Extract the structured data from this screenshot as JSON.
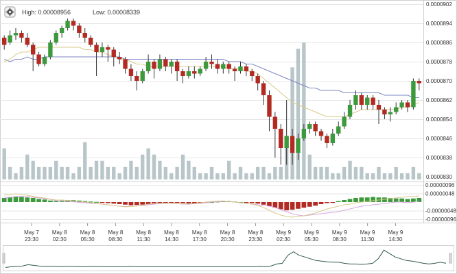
{
  "header": {
    "high_label": "High: 0.00008956",
    "low_label": "Low: 0.00008339",
    "settings_icon": "gear-icon"
  },
  "colors": {
    "up": "#3c9a3c",
    "down": "#b32a22",
    "volume": "#b9c6c9",
    "ma_slow": "#7c87c4",
    "ma_fast": "#d9c98a",
    "macd_signal": "#d8a6e0",
    "macd_line": "#d9c98a",
    "grid": "#e6e6e6"
  },
  "chart_data": [
    {
      "type": "candlestick",
      "price_axis": {
        "ticks": [
          "0.0000902",
          "0.0000894",
          "0.0000886",
          "0.0000878",
          "0.0000870",
          "0.0000862",
          "0.0000854",
          "0.0000846",
          "0.0000838",
          "0.0000830"
        ],
        "range": [
          8.3e-05,
          9.02e-05
        ]
      },
      "time_axis": [
        {
          "date": "May 7",
          "time": "23:30"
        },
        {
          "date": "May 8",
          "time": "02:30"
        },
        {
          "date": "May 8",
          "time": "05:30"
        },
        {
          "date": "May 8",
          "time": "08:30"
        },
        {
          "date": "May 8",
          "time": "11:30"
        },
        {
          "date": "May 8",
          "time": "14:30"
        },
        {
          "date": "May 8",
          "time": "17:30"
        },
        {
          "date": "May 8",
          "time": "20:30"
        },
        {
          "date": "May 8",
          "time": "23:30"
        },
        {
          "date": "May 9",
          "time": "02:30"
        },
        {
          "date": "May 9",
          "time": "05:30"
        },
        {
          "date": "May 9",
          "time": "08:30"
        },
        {
          "date": "May 9",
          "time": "11:30"
        },
        {
          "date": "May 9",
          "time": "14:30"
        }
      ],
      "candles": [
        [
          8.88e-05,
          8.85e-05,
          8.89e-05,
          8.83e-05
        ],
        [
          8.86e-05,
          8.89e-05,
          8.91e-05,
          8.85e-05
        ],
        [
          8.89e-05,
          8.9e-05,
          8.92e-05,
          8.87e-05
        ],
        [
          8.9e-05,
          8.88e-05,
          8.91e-05,
          8.86e-05
        ],
        [
          8.88e-05,
          8.85e-05,
          8.9e-05,
          8.84e-05
        ],
        [
          8.85e-05,
          8.81e-05,
          8.86e-05,
          8.74e-05
        ],
        [
          8.81e-05,
          8.77e-05,
          8.82e-05,
          8.76e-05
        ],
        [
          8.77e-05,
          8.8e-05,
          8.81e-05,
          8.76e-05
        ],
        [
          8.8e-05,
          8.86e-05,
          8.87e-05,
          8.79e-05
        ],
        [
          8.86e-05,
          8.9e-05,
          8.91e-05,
          8.85e-05
        ],
        [
          8.9e-05,
          8.92e-05,
          8.93e-05,
          8.88e-05
        ],
        [
          8.92e-05,
          8.95e-05,
          8.96e-05,
          8.91e-05
        ],
        [
          8.95e-05,
          8.93e-05,
          8.96e-05,
          8.91e-05
        ],
        [
          8.93e-05,
          8.9e-05,
          8.94e-05,
          8.88e-05
        ],
        [
          8.9e-05,
          8.88e-05,
          8.92e-05,
          8.86e-05
        ],
        [
          8.88e-05,
          8.85e-05,
          8.89e-05,
          8.84e-05
        ],
        [
          8.85e-05,
          8.82e-05,
          8.86e-05,
          8.72e-05
        ],
        [
          8.82e-05,
          8.84e-05,
          8.86e-05,
          8.8e-05
        ],
        [
          8.84e-05,
          8.83e-05,
          8.85e-05,
          8.78e-05
        ],
        [
          8.83e-05,
          8.8e-05,
          8.84e-05,
          8.76e-05
        ],
        [
          8.8e-05,
          8.79e-05,
          8.82e-05,
          8.77e-05
        ],
        [
          8.79e-05,
          8.75e-05,
          8.8e-05,
          8.73e-05
        ],
        [
          8.75e-05,
          8.72e-05,
          8.77e-05,
          8.7e-05
        ],
        [
          8.72e-05,
          8.7e-05,
          8.74e-05,
          8.66e-05
        ],
        [
          8.7e-05,
          8.74e-05,
          8.75e-05,
          8.69e-05
        ],
        [
          8.74e-05,
          8.78e-05,
          8.81e-05,
          8.73e-05
        ],
        [
          8.78e-05,
          8.75e-05,
          8.79e-05,
          8.71e-05
        ],
        [
          8.75e-05,
          8.79e-05,
          8.81e-05,
          8.74e-05
        ],
        [
          8.79e-05,
          8.76e-05,
          8.8e-05,
          8.74e-05
        ],
        [
          8.76e-05,
          8.78e-05,
          8.79e-05,
          8.73e-05
        ],
        [
          8.78e-05,
          8.74e-05,
          8.79e-05,
          8.7e-05
        ],
        [
          8.74e-05,
          8.72e-05,
          8.75e-05,
          8.69e-05
        ],
        [
          8.72e-05,
          8.74e-05,
          8.76e-05,
          8.71e-05
        ],
        [
          8.74e-05,
          8.73e-05,
          8.76e-05,
          8.71e-05
        ],
        [
          8.73e-05,
          8.75e-05,
          8.76e-05,
          8.72e-05
        ],
        [
          8.75e-05,
          8.78e-05,
          8.8e-05,
          8.74e-05
        ],
        [
          8.78e-05,
          8.77e-05,
          8.81e-05,
          8.75e-05
        ],
        [
          8.77e-05,
          8.75e-05,
          8.79e-05,
          8.73e-05
        ],
        [
          8.75e-05,
          8.77e-05,
          8.78e-05,
          8.73e-05
        ],
        [
          8.77e-05,
          8.75e-05,
          8.78e-05,
          8.73e-05
        ],
        [
          8.75e-05,
          8.74e-05,
          8.76e-05,
          8.7e-05
        ],
        [
          8.74e-05,
          8.76e-05,
          8.78e-05,
          8.73e-05
        ],
        [
          8.76e-05,
          8.74e-05,
          8.77e-05,
          8.72e-05
        ],
        [
          8.74e-05,
          8.72e-05,
          8.75e-05,
          8.7e-05
        ],
        [
          8.72e-05,
          8.69e-05,
          8.73e-05,
          8.66e-05
        ],
        [
          8.69e-05,
          8.64e-05,
          8.7e-05,
          8.6e-05
        ],
        [
          8.64e-05,
          8.55e-05,
          8.66e-05,
          8.49e-05
        ],
        [
          8.55e-05,
          8.5e-05,
          8.57e-05,
          8.38e-05
        ],
        [
          8.5e-05,
          8.42e-05,
          8.52e-05,
          8.35e-05
        ],
        [
          8.42e-05,
          8.47e-05,
          8.62e-05,
          8.35e-05
        ],
        [
          8.47e-05,
          8.4e-05,
          8.5e-05,
          8.35e-05
        ],
        [
          8.4e-05,
          8.46e-05,
          8.48e-05,
          8.37e-05
        ],
        [
          8.46e-05,
          8.5e-05,
          8.52e-05,
          8.45e-05
        ],
        [
          8.5e-05,
          8.52e-05,
          8.53e-05,
          8.48e-05
        ],
        [
          8.52e-05,
          8.49e-05,
          8.53e-05,
          8.47e-05
        ],
        [
          8.49e-05,
          8.47e-05,
          8.5e-05,
          8.45e-05
        ],
        [
          8.47e-05,
          8.44e-05,
          8.48e-05,
          8.42e-05
        ],
        [
          8.44e-05,
          8.48e-05,
          8.5e-05,
          8.43e-05
        ],
        [
          8.48e-05,
          8.51e-05,
          8.53e-05,
          8.47e-05
        ],
        [
          8.51e-05,
          8.55e-05,
          8.57e-05,
          8.5e-05
        ],
        [
          8.55e-05,
          8.6e-05,
          8.62e-05,
          8.54e-05
        ],
        [
          8.6e-05,
          8.64e-05,
          8.66e-05,
          8.58e-05
        ],
        [
          8.64e-05,
          8.6e-05,
          8.65e-05,
          8.58e-05
        ],
        [
          8.6e-05,
          8.63e-05,
          8.64e-05,
          8.58e-05
        ],
        [
          8.63e-05,
          8.6e-05,
          8.64e-05,
          8.58e-05
        ],
        [
          8.6e-05,
          8.58e-05,
          8.62e-05,
          8.52e-05
        ],
        [
          8.58e-05,
          8.56e-05,
          8.59e-05,
          8.54e-05
        ],
        [
          8.56e-05,
          8.57e-05,
          8.59e-05,
          8.53e-05
        ],
        [
          8.57e-05,
          8.59e-05,
          8.61e-05,
          8.56e-05
        ],
        [
          8.59e-05,
          8.61e-05,
          8.62e-05,
          8.58e-05
        ],
        [
          8.61e-05,
          8.59e-05,
          8.62e-05,
          8.57e-05
        ],
        [
          8.59e-05,
          8.7e-05,
          8.71e-05,
          8.58e-05
        ],
        [
          8.7e-05,
          8.69e-05,
          8.71e-05,
          8.66e-05
        ]
      ],
      "volume": [
        5,
        2,
        1,
        2,
        4,
        3,
        2,
        2,
        2,
        3,
        2,
        2,
        1,
        2,
        6,
        2,
        3,
        3,
        2,
        2,
        1,
        2,
        3,
        2,
        4,
        5,
        4,
        3,
        2,
        1,
        2,
        4,
        3,
        2,
        1,
        1,
        2,
        1,
        1,
        3,
        1,
        2,
        1,
        1,
        2,
        2,
        1,
        2,
        2,
        6,
        18,
        21,
        22,
        4,
        2,
        2,
        2,
        1,
        1,
        2,
        3,
        2,
        2,
        1,
        1,
        2,
        1,
        1,
        2,
        1,
        1,
        2,
        1
      ],
      "ma_slow": [
        8.79e-05,
        8.78e-05,
        8.79e-05,
        8.79e-05,
        8.8e-05,
        8.79e-05,
        8.79e-05,
        8.8e-05,
        8.8e-05,
        8.8e-05,
        8.8e-05,
        8.8e-05,
        8.8e-05,
        8.8e-05,
        8.8e-05,
        8.8e-05,
        8.8e-05,
        8.8e-05,
        8.8e-05,
        8.8e-05,
        8.8e-05,
        8.79e-05,
        8.79e-05,
        8.79e-05,
        8.79e-05,
        8.79e-05,
        8.79e-05,
        8.79e-05,
        8.79e-05,
        8.79e-05,
        8.79e-05,
        8.79e-05,
        8.79e-05,
        8.79e-05,
        8.79e-05,
        8.79e-05,
        8.79e-05,
        8.79e-05,
        8.79e-05,
        8.78e-05,
        8.78e-05,
        8.78e-05,
        8.77e-05,
        8.77e-05,
        8.76e-05,
        8.75e-05,
        8.74e-05,
        8.73e-05,
        8.72e-05,
        8.71e-05,
        8.7e-05,
        8.69e-05,
        8.68e-05,
        8.67e-05,
        8.67e-05,
        8.66e-05,
        8.66e-05,
        8.66e-05,
        8.66e-05,
        8.65e-05,
        8.65e-05,
        8.65e-05,
        8.65e-05,
        8.65e-05,
        8.65e-05,
        8.65e-05,
        8.64e-05,
        8.64e-05,
        8.64e-05,
        8.64e-05,
        8.64e-05,
        8.63e-05,
        8.63e-05
      ],
      "ma_fast": [
        8.78e-05,
        8.79e-05,
        8.81e-05,
        8.82e-05,
        8.82e-05,
        8.83e-05,
        8.84e-05,
        8.84e-05,
        8.84e-05,
        8.84e-05,
        8.84e-05,
        8.84e-05,
        8.84e-05,
        8.84e-05,
        8.83e-05,
        8.83e-05,
        8.82e-05,
        8.82e-05,
        8.81e-05,
        8.8e-05,
        8.79e-05,
        8.79e-05,
        8.78e-05,
        8.77e-05,
        8.77e-05,
        8.76e-05,
        8.76e-05,
        8.76e-05,
        8.76e-05,
        8.76e-05,
        8.76e-05,
        8.76e-05,
        8.76e-05,
        8.76e-05,
        8.76e-05,
        8.76e-05,
        8.76e-05,
        8.76e-05,
        8.76e-05,
        8.75e-05,
        8.75e-05,
        8.75e-05,
        8.74e-05,
        8.74e-05,
        8.73e-05,
        8.71e-05,
        8.69e-05,
        8.67e-05,
        8.65e-05,
        8.63e-05,
        8.61e-05,
        8.6e-05,
        8.59e-05,
        8.58e-05,
        8.57e-05,
        8.56e-05,
        8.55e-05,
        8.55e-05,
        8.55e-05,
        8.55e-05,
        8.56e-05,
        8.57e-05,
        8.58e-05,
        8.58e-05,
        8.58e-05,
        8.58e-05,
        8.58e-05,
        8.58e-05,
        8.58e-05,
        8.59e-05,
        8.59e-05,
        8.6e-05,
        8.61e-05
      ]
    },
    {
      "type": "macd",
      "axis": {
        "ticks": [
          "0.00000096",
          "0.00000048",
          "-0.00000048",
          "-0.00000096"
        ],
        "range": [
          -9.6e-07,
          9.6e-07
        ]
      },
      "histogram": [
        0.4,
        0.5,
        0.55,
        0.5,
        0.45,
        0.4,
        0.3,
        0.25,
        0.15,
        0.1,
        0.15,
        0.2,
        0.2,
        0.15,
        0.1,
        0.05,
        0.02,
        -0.05,
        -0.1,
        -0.15,
        -0.2,
        -0.25,
        -0.3,
        -0.28,
        -0.25,
        -0.2,
        -0.15,
        -0.1,
        -0.08,
        -0.05,
        -0.05,
        -0.1,
        -0.15,
        -0.15,
        -0.1,
        -0.05,
        0.0,
        0.05,
        0.1,
        0.1,
        0.05,
        0.0,
        -0.05,
        -0.1,
        -0.15,
        -0.25,
        -0.4,
        -0.55,
        -0.7,
        -0.8,
        -0.75,
        -0.65,
        -0.55,
        -0.45,
        -0.35,
        -0.2,
        -0.1,
        -0.05,
        0.1,
        0.2,
        0.3,
        0.4,
        0.45,
        0.45,
        0.5,
        0.45,
        0.45,
        0.4,
        0.35,
        0.35,
        0.3,
        0.35,
        0.4
      ],
      "signal_line": [
        0.3,
        0.35,
        0.4,
        0.42,
        0.4,
        0.35,
        0.3,
        0.25,
        0.2,
        0.1,
        0.05,
        0.05,
        0.02,
        -0.02,
        -0.05,
        -0.1,
        -0.12,
        -0.15,
        -0.2,
        -0.25,
        -0.3,
        -0.32,
        -0.3,
        -0.28,
        -0.25,
        -0.2,
        -0.15,
        -0.12,
        -0.1,
        -0.1,
        -0.12,
        -0.15,
        -0.15,
        -0.12,
        -0.1,
        -0.05,
        0.0,
        0.02,
        0.05,
        0.05,
        0.0,
        -0.05,
        -0.1,
        -0.15,
        -0.2,
        -0.25,
        -0.3,
        -0.4,
        -0.55,
        -0.7,
        -0.85,
        -0.95,
        -1.0,
        -0.95,
        -0.9,
        -0.85,
        -0.8,
        -0.75,
        -0.7,
        -0.6,
        -0.5,
        -0.4,
        -0.3,
        -0.25,
        -0.2,
        -0.15,
        -0.1,
        -0.05,
        0.0,
        0.0,
        -0.05,
        0.0,
        0.05
      ],
      "macd_line": [
        0.5,
        0.55,
        0.6,
        0.55,
        0.5,
        0.42,
        0.35,
        0.3,
        0.22,
        0.15,
        0.15,
        0.12,
        0.1,
        0.05,
        0.0,
        -0.05,
        -0.1,
        -0.15,
        -0.2,
        -0.25,
        -0.3,
        -0.35,
        -0.32,
        -0.28,
        -0.22,
        -0.15,
        -0.1,
        -0.08,
        -0.08,
        -0.1,
        -0.12,
        -0.13,
        -0.12,
        -0.1,
        -0.05,
        0.0,
        0.05,
        0.08,
        0.08,
        0.05,
        0.0,
        -0.05,
        -0.1,
        -0.15,
        -0.25,
        -0.4,
        -0.6,
        -0.8,
        -0.95,
        -1.05,
        -1.1,
        -1.05,
        -1.0,
        -0.9,
        -0.8,
        -0.65,
        -0.5,
        -0.4,
        -0.3,
        -0.2,
        -0.15,
        -0.05,
        0.0,
        0.05,
        0.1,
        0.15,
        0.2,
        0.25,
        0.3,
        0.35,
        0.4,
        0.42,
        0.45
      ]
    },
    {
      "type": "line",
      "series_values": [
        3,
        3.2,
        3.3,
        3.4,
        3.8,
        3.6,
        3.4,
        3.3,
        3.3,
        3.3,
        3.2,
        3.3,
        3.3,
        3.2,
        3.2,
        3.2,
        3.3,
        3.2,
        3.2,
        3.2,
        3.2,
        3.2,
        3.3,
        3.2,
        3.2,
        3.2,
        3.2,
        3.2,
        3.2,
        3.2,
        3.2,
        3.2,
        3.2,
        3.2,
        3.2,
        3.2,
        3.2,
        3.2,
        3.2,
        3.2,
        3.2,
        3.2,
        3.2,
        3.2,
        3.2,
        3.3,
        3.2,
        3.4,
        4.0,
        4.2,
        6.5,
        7.5,
        6.5,
        6.0,
        5.5,
        5.0,
        4.8,
        4.6,
        4.5,
        4.5,
        4.2,
        4.0,
        4.0,
        3.9,
        4.0,
        4.2,
        5.5,
        8.0,
        7.0,
        6.0,
        5.5,
        5.0,
        4.8,
        4.5,
        4.2,
        4.0,
        4.2,
        4.5,
        4.2
      ]
    }
  ]
}
